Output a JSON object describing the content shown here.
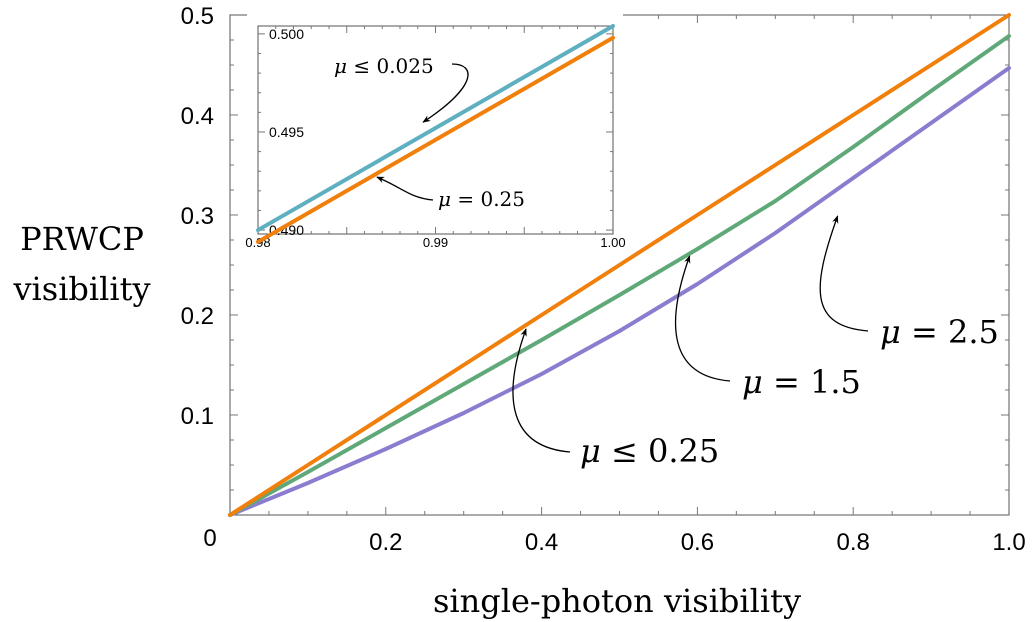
{
  "chart_data": {
    "type": "line",
    "title": "",
    "xlabel": "single-photon visibility",
    "ylabel": "PRWCP visibility",
    "ylabel_lines": [
      "PRWCP",
      "visibility"
    ],
    "xlim": [
      0,
      1.0
    ],
    "ylim": [
      0,
      0.5
    ],
    "x_ticks": [
      0.2,
      0.4,
      0.6,
      0.8,
      1.0
    ],
    "x_tick_labels": [
      "0.2",
      "0.4",
      "0.6",
      "0.8",
      "1.0"
    ],
    "y_ticks": [
      0.1,
      0.2,
      0.3,
      0.4,
      0.5
    ],
    "y_tick_labels": [
      "0.1",
      "0.2",
      "0.3",
      "0.4",
      "0.5"
    ],
    "origin_label": "0",
    "grid": false,
    "series": [
      {
        "color": "#F07F0B",
        "x": [
          0,
          0.1,
          0.2,
          0.3,
          0.4,
          0.5,
          0.6,
          0.7,
          0.8,
          0.9,
          1.0
        ],
        "y": [
          0,
          0.05,
          0.1,
          0.15,
          0.2,
          0.25,
          0.3,
          0.35,
          0.4,
          0.45,
          0.5
        ]
      },
      {
        "color": "#5FA878",
        "x": [
          0,
          0.1,
          0.2,
          0.3,
          0.4,
          0.5,
          0.6,
          0.7,
          0.8,
          0.9,
          1.0
        ],
        "y": [
          0,
          0.043,
          0.087,
          0.131,
          0.175,
          0.22,
          0.266,
          0.314,
          0.368,
          0.424,
          0.479
        ]
      },
      {
        "color": "#8C7CD0",
        "x": [
          0,
          0.1,
          0.2,
          0.3,
          0.4,
          0.5,
          0.6,
          0.7,
          0.8,
          0.9,
          1.0
        ],
        "y": [
          0,
          0.032,
          0.066,
          0.102,
          0.141,
          0.184,
          0.231,
          0.282,
          0.337,
          0.392,
          0.447
        ]
      }
    ],
    "annotations": [
      {
        "text_prefix": "μ",
        "text_suffix": " ≤ 0.25",
        "x": 0.48,
        "y": 0.065,
        "arrow_to": [
          0.38,
          0.186
        ]
      },
      {
        "text_prefix": "μ",
        "text_suffix": " = 1.5",
        "x": 0.65,
        "y": 0.13,
        "arrow_to": [
          0.59,
          0.259
        ]
      },
      {
        "text_prefix": "μ",
        "text_suffix": " = 2.5",
        "x": 0.83,
        "y": 0.18,
        "arrow_to": [
          0.78,
          0.299
        ]
      }
    ],
    "inset": {
      "type": "line",
      "xlim": [
        0.98,
        1.0
      ],
      "ylim": [
        0.4898,
        0.5004
      ],
      "x_ticks": [
        0.98,
        0.99,
        1.0
      ],
      "x_tick_labels": [
        "0.98",
        "0.99",
        "1.00"
      ],
      "y_ticks": [
        0.49,
        0.495,
        0.5
      ],
      "y_tick_labels": [
        "0.490",
        "0.495",
        "0.500"
      ],
      "series": [
        {
          "color": "#5EAFC0",
          "x": [
            0.98,
            1.0
          ],
          "y": [
            0.49,
            0.5004
          ]
        },
        {
          "color": "#F07F0B",
          "x": [
            0.98,
            1.0
          ],
          "y": [
            0.4894,
            0.4998
          ]
        }
      ],
      "annotations": [
        {
          "text_prefix": "μ",
          "text_suffix": " ≤ 0.025",
          "x": 0.9832,
          "y": 0.4995,
          "arrow_to": [
            0.9893,
            0.4955
          ]
        },
        {
          "text_prefix": "μ",
          "text_suffix": " = 0.25",
          "x": 0.9906,
          "y": 0.4907,
          "arrow_to": [
            0.9867,
            0.4927
          ]
        }
      ]
    }
  }
}
